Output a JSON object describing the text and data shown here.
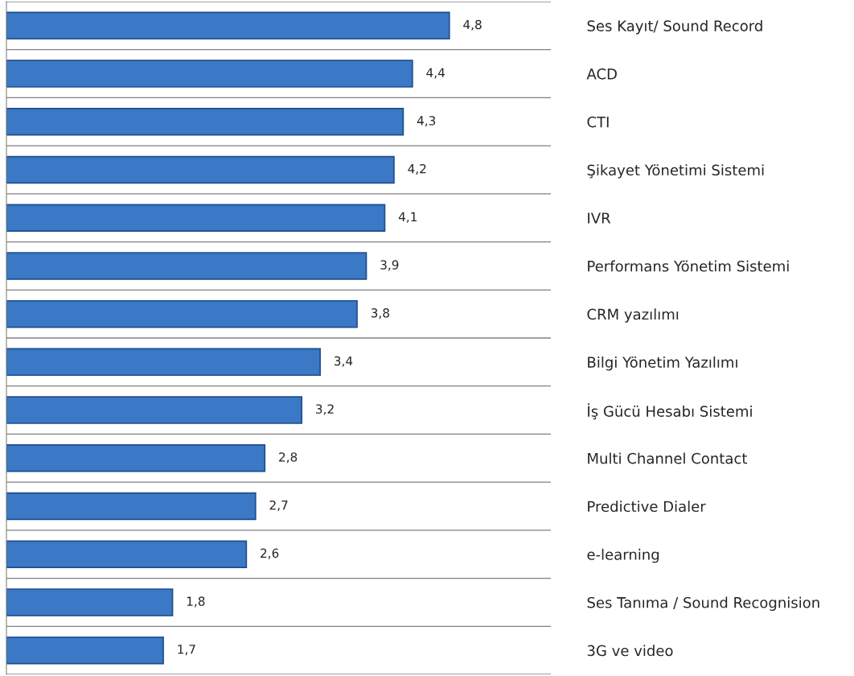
{
  "chart_data": {
    "type": "bar",
    "orientation": "horizontal",
    "categories": [
      "Ses Kayıt/ Sound Record",
      "ACD",
      "CTI",
      "Şikayet Yönetimi Sistemi",
      "IVR",
      "Performans Yönetim Sistemi",
      "CRM yazılımı",
      "Bilgi Yönetim Yazılımı",
      "İş Gücü Hesabı Sistemi",
      "Multi Channel Contact",
      "Predictive Dialer",
      "e-learning",
      "Ses Tanıma / Sound Recognision",
      "3G ve video"
    ],
    "values": [
      4.8,
      4.4,
      4.3,
      4.2,
      4.1,
      3.9,
      3.8,
      3.4,
      3.2,
      2.8,
      2.7,
      2.6,
      1.8,
      1.7
    ],
    "value_labels": [
      "4,8",
      "4,4",
      "4,3",
      "4,2",
      "4,1",
      "3,9",
      "3,8",
      "3,4",
      "3,2",
      "2,8",
      "2,7",
      "2,6",
      "1,8",
      "1,7"
    ],
    "color": "#3b78c6",
    "xlim": [
      0,
      5.9
    ],
    "grid": "y",
    "tick_labels": "y",
    "legend": false
  }
}
